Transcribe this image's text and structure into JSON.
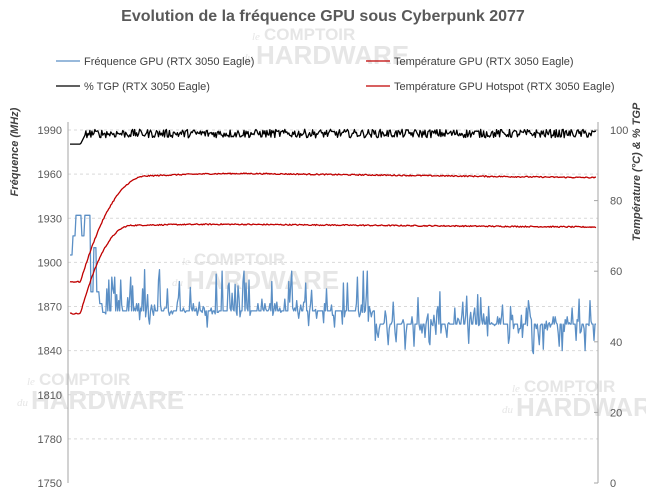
{
  "watermark": {
    "line1": "COMPTOIR",
    "line2": "HARDWARE",
    "small1": "le",
    "small2": "du"
  },
  "chart_data": {
    "type": "line",
    "title": "Evolution de la fréquence GPU sous Cyberpunk 2077",
    "ylabel_left": "Fréquence (MHz)",
    "ylabel_right": "Température (°C) & % TGP",
    "ylim_left": [
      1750,
      1990
    ],
    "yticks_left": [
      1750,
      1780,
      1810,
      1840,
      1870,
      1900,
      1930,
      1960,
      1990
    ],
    "ylim_right": [
      0,
      100
    ],
    "yticks_right": [
      0,
      20,
      40,
      60,
      80,
      100
    ],
    "grid": true,
    "legend_position": "top",
    "series": [
      {
        "name": "Fréquence GPU (RTX 3050 Eagle)",
        "axis": "left",
        "color": "#5b8fc5",
        "profile": {
          "start_values": [
            1905,
            1918,
            1932,
            1932,
            1918,
            1932,
            1932,
            1880,
            1910,
            1880,
            1872,
            1866
          ],
          "first_phase_typical": 1867,
          "first_phase_range": [
            1855,
            1895
          ],
          "second_phase_typical": 1858,
          "second_phase_range": [
            1840,
            1880
          ],
          "phase_change_fraction": 0.58,
          "spikes": [
            {
              "at": 0.33,
              "value": 1894
            },
            {
              "at": 0.52,
              "value": 1886
            },
            {
              "at": 0.88,
              "value": 1838
            }
          ]
        }
      },
      {
        "name": "Température GPU (RTX 3050 Eagle)",
        "axis": "right",
        "color": "#c00000",
        "profile": {
          "start": 48,
          "plateau": 73,
          "rise_fraction": 0.12,
          "peak": 73.5,
          "end": 72.5
        }
      },
      {
        "name": "% TGP (RTX 3050 Eagle)",
        "axis": "right",
        "color": "#000000",
        "profile": {
          "start": 96,
          "plateau": 99,
          "noise": 1.2
        }
      },
      {
        "name": "Température GPU Hotspot (RTX 3050 Eagle)",
        "axis": "right",
        "color": "#c00000",
        "profile": {
          "start": 57,
          "plateau": 87,
          "rise_fraction": 0.15,
          "peak": 88,
          "end": 86.5
        }
      }
    ]
  }
}
